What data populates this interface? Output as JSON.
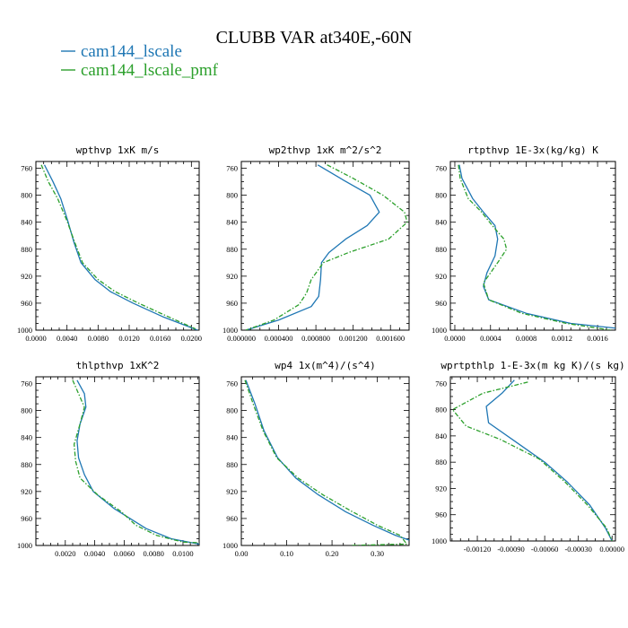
{
  "title": "CLUBB VAR at340E,-60N",
  "colors": {
    "series1": "#1f77b4",
    "series2": "#2ca02c",
    "axis": "#000000"
  },
  "legend": [
    {
      "name": "cam144_lscale",
      "color": "#1f77b4",
      "dash": false
    },
    {
      "name": "cam144_lscale_pmf",
      "color": "#2ca02c",
      "dash": true
    }
  ],
  "chart_data": [
    {
      "type": "line",
      "title": "wpthvp   1xK m/s",
      "xlim": [
        0.0,
        0.021
      ],
      "xticks": [
        0.0,
        0.004,
        0.008,
        0.012,
        0.016,
        0.02
      ],
      "xtick_labels": [
        "0.0000",
        "0.0040",
        "0.0080",
        "0.0120",
        "0.0160",
        "0.0200"
      ],
      "ylim": [
        1000,
        750
      ],
      "yticks": [
        760,
        800,
        840,
        880,
        920,
        960,
        1000
      ],
      "series": [
        {
          "name": "cam144_lscale",
          "points": [
            [
              0.0011,
              755
            ],
            [
              0.0022,
              780
            ],
            [
              0.0032,
              805
            ],
            [
              0.0041,
              838
            ],
            [
              0.0049,
              870
            ],
            [
              0.0058,
              900
            ],
            [
              0.0076,
              925
            ],
            [
              0.0096,
              943
            ],
            [
              0.0125,
              960
            ],
            [
              0.0163,
              980
            ],
            [
              0.0208,
              1000
            ]
          ]
        },
        {
          "name": "cam144_lscale_pmf",
          "points": [
            [
              0.0007,
              755
            ],
            [
              0.0016,
              780
            ],
            [
              0.0028,
              805
            ],
            [
              0.004,
              838
            ],
            [
              0.005,
              870
            ],
            [
              0.006,
              900
            ],
            [
              0.008,
              925
            ],
            [
              0.0102,
              943
            ],
            [
              0.0132,
              960
            ],
            [
              0.017,
              980
            ],
            [
              0.0205,
              998
            ]
          ]
        }
      ]
    },
    {
      "type": "line",
      "title": "wp2thvp   1xK m^2/s^2",
      "xlim": [
        0.0,
        0.0018
      ],
      "xticks": [
        0.0,
        0.0004,
        0.0008,
        0.0012,
        0.0016
      ],
      "xtick_labels": [
        "0.000000",
        "0.000400",
        "0.000800",
        "0.001200",
        "0.001600"
      ],
      "ylim": [
        1000,
        750
      ],
      "yticks": [
        760,
        800,
        840,
        880,
        920,
        960,
        1000
      ],
      "series": [
        {
          "name": "cam144_lscale",
          "points": [
            [
              0.00082,
              755
            ],
            [
              0.0011,
              778
            ],
            [
              0.00138,
              800
            ],
            [
              0.00148,
              825
            ],
            [
              0.00135,
              845
            ],
            [
              0.00112,
              865
            ],
            [
              0.00094,
              885
            ],
            [
              0.00086,
              900
            ],
            [
              0.00085,
              925
            ],
            [
              0.00083,
              950
            ],
            [
              0.00075,
              965
            ],
            [
              0.0004,
              985
            ],
            [
              5e-05,
              1000
            ]
          ]
        },
        {
          "name": "cam144_lscale_pmf",
          "points": [
            [
              0.00092,
              755
            ],
            [
              0.0012,
              775
            ],
            [
              0.00152,
              800
            ],
            [
              0.00175,
              825
            ],
            [
              0.00178,
              840
            ],
            [
              0.00158,
              865
            ],
            [
              0.00115,
              885
            ],
            [
              0.00088,
              900
            ],
            [
              0.00075,
              925
            ],
            [
              0.0007,
              945
            ],
            [
              0.00062,
              962
            ],
            [
              0.00035,
              985
            ],
            [
              5e-05,
              1000
            ]
          ]
        }
      ]
    },
    {
      "type": "line",
      "title": "rtpthvp   1E-3x(kg/kg) K",
      "xlim": [
        -5e-05,
        0.0018
      ],
      "xticks": [
        0.0,
        0.0004,
        0.0008,
        0.0012,
        0.0016
      ],
      "xtick_labels": [
        "0.0000",
        "0.0004",
        "0.0008",
        "0.0012",
        "0.0016"
      ],
      "ylim": [
        1000,
        750
      ],
      "yticks": [
        760,
        800,
        840,
        880,
        920,
        960,
        1000
      ],
      "series": [
        {
          "name": "cam144_lscale",
          "points": [
            [
              5e-05,
              755
            ],
            [
              8e-05,
              775
            ],
            [
              0.0002,
              805
            ],
            [
              0.00032,
              825
            ],
            [
              0.00045,
              845
            ],
            [
              0.00048,
              865
            ],
            [
              0.00045,
              890
            ],
            [
              0.00036,
              915
            ],
            [
              0.00032,
              935
            ],
            [
              0.00038,
              955
            ],
            [
              0.0008,
              975
            ],
            [
              0.0013,
              990
            ],
            [
              0.0018,
              997
            ]
          ]
        },
        {
          "name": "cam144_lscale_pmf",
          "points": [
            [
              4e-05,
              755
            ],
            [
              6e-05,
              775
            ],
            [
              0.00015,
              805
            ],
            [
              0.0003,
              825
            ],
            [
              0.00042,
              845
            ],
            [
              0.00055,
              865
            ],
            [
              0.00058,
              880
            ],
            [
              0.00048,
              900
            ],
            [
              0.00032,
              930
            ],
            [
              0.00038,
              955
            ],
            [
              0.00075,
              975
            ],
            [
              0.00125,
              990
            ],
            [
              0.00175,
              1000
            ]
          ]
        }
      ]
    },
    {
      "type": "line",
      "title": "thlpthvp   1xK^2",
      "xlim": [
        0.0,
        0.0111
      ],
      "xticks": [
        0.002,
        0.004,
        0.006,
        0.008,
        0.01
      ],
      "xtick_labels": [
        "0.0020",
        "0.0040",
        "0.0060",
        "0.0080",
        "0.0100"
      ],
      "ylim": [
        1000,
        750
      ],
      "yticks": [
        760,
        800,
        840,
        880,
        920,
        960,
        1000
      ],
      "series": [
        {
          "name": "cam144_lscale",
          "points": [
            [
              0.0028,
              755
            ],
            [
              0.0033,
              775
            ],
            [
              0.0034,
              795
            ],
            [
              0.003,
              820
            ],
            [
              0.0028,
              845
            ],
            [
              0.0029,
              870
            ],
            [
              0.0033,
              895
            ],
            [
              0.0039,
              920
            ],
            [
              0.0053,
              945
            ],
            [
              0.0075,
              975
            ],
            [
              0.0092,
              990
            ],
            [
              0.0111,
              998
            ]
          ]
        },
        {
          "name": "cam144_lscale_pmf",
          "points": [
            [
              0.0025,
              755
            ],
            [
              0.0029,
              775
            ],
            [
              0.0033,
              795
            ],
            [
              0.003,
              820
            ],
            [
              0.0026,
              850
            ],
            [
              0.0027,
              875
            ],
            [
              0.003,
              900
            ],
            [
              0.0042,
              925
            ],
            [
              0.0058,
              950
            ],
            [
              0.0068,
              970
            ],
            [
              0.0082,
              985
            ],
            [
              0.01,
              995
            ],
            [
              0.0111,
              996
            ]
          ]
        }
      ]
    },
    {
      "type": "line",
      "title": "wp4   1x(m^4)/(s^4)",
      "xlim": [
        0.0,
        0.37
      ],
      "xticks": [
        0.0,
        0.1,
        0.2,
        0.3
      ],
      "xtick_labels": [
        "0.00",
        "0.10",
        "0.20",
        "0.30"
      ],
      "ylim": [
        1000,
        750
      ],
      "yticks": [
        760,
        800,
        840,
        880,
        920,
        960,
        1000
      ],
      "series": [
        {
          "name": "cam144_lscale",
          "points": [
            [
              0.01,
              755
            ],
            [
              0.03,
              790
            ],
            [
              0.05,
              830
            ],
            [
              0.08,
              870
            ],
            [
              0.12,
              900
            ],
            [
              0.17,
              925
            ],
            [
              0.23,
              950
            ],
            [
              0.29,
              970
            ],
            [
              0.34,
              985
            ],
            [
              0.37,
              992
            ]
          ]
        },
        {
          "name": "cam144_lscale_pmf",
          "points": [
            [
              0.008,
              755
            ],
            [
              0.026,
              790
            ],
            [
              0.048,
              830
            ],
            [
              0.078,
              870
            ],
            [
              0.125,
              900
            ],
            [
              0.18,
              925
            ],
            [
              0.245,
              950
            ],
            [
              0.3,
              970
            ],
            [
              0.35,
              985
            ],
            [
              0.365,
              998
            ],
            [
              0.24,
              1000
            ]
          ]
        }
      ]
    },
    {
      "type": "line",
      "title": "wprtpthlp   1-E-3x(m kg K)/(s kg)",
      "xlim": [
        -0.00144,
        3e-05
      ],
      "xticks": [
        -0.0012,
        -0.0009,
        -0.0006,
        -0.0003,
        0.0
      ],
      "xtick_labels": [
        "-0.00120",
        "-0.00090",
        "-0.00060",
        "-0.00030",
        "0.00000"
      ],
      "ylim": [
        1000,
        750
      ],
      "yticks": [
        760,
        800,
        840,
        880,
        920,
        960,
        1000
      ],
      "series": [
        {
          "name": "cam144_lscale",
          "points": [
            [
              -0.00087,
              755
            ],
            [
              -0.00098,
              775
            ],
            [
              -0.00112,
              795
            ],
            [
              -0.0011,
              820
            ],
            [
              -0.00085,
              850
            ],
            [
              -0.0006,
              880
            ],
            [
              -0.0004,
              910
            ],
            [
              -0.0002,
              945
            ],
            [
              -6e-05,
              980
            ],
            [
              0.0,
              1000
            ]
          ]
        },
        {
          "name": "cam144_lscale_pmf",
          "points": [
            [
              -0.00075,
              758
            ],
            [
              -0.00115,
              775
            ],
            [
              -0.00142,
              800
            ],
            [
              -0.0013,
              825
            ],
            [
              -0.001,
              845
            ],
            [
              -0.00065,
              875
            ],
            [
              -0.00042,
              910
            ],
            [
              -0.00022,
              945
            ],
            [
              -5e-05,
              980
            ],
            [
              0.0,
              1000
            ]
          ]
        }
      ]
    }
  ]
}
